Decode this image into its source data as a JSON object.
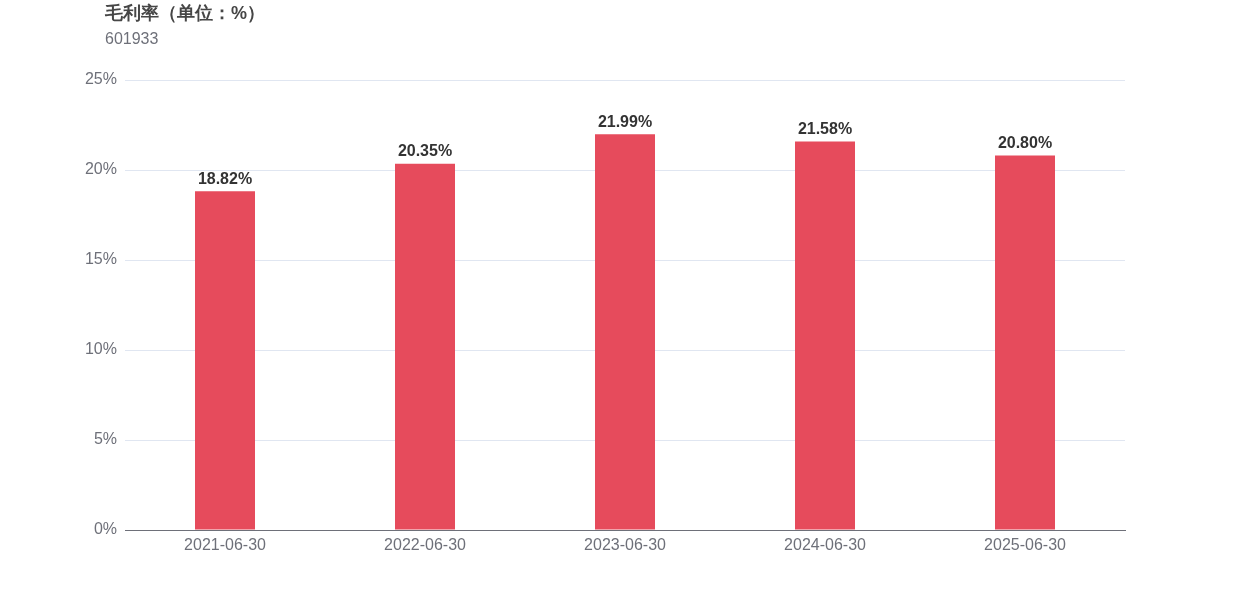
{
  "chart_data": {
    "type": "bar",
    "title": "毛利率（单位：%）",
    "subtitle": "601933",
    "categories": [
      "2021-06-30",
      "2022-06-30",
      "2023-06-30",
      "2024-06-30",
      "2025-06-30"
    ],
    "values": [
      18.82,
      20.35,
      21.99,
      21.58,
      20.8
    ],
    "value_labels": [
      "18.82%",
      "20.35%",
      "21.99%",
      "21.58%",
      "20.80%"
    ],
    "color": "#e64b5c",
    "ylim": [
      0,
      25
    ],
    "yticks": [
      {
        "value": 0,
        "label": "0%"
      },
      {
        "value": 5,
        "label": "5%"
      },
      {
        "value": 10,
        "label": "10%"
      },
      {
        "value": 15,
        "label": "15%"
      },
      {
        "value": 20,
        "label": "20%"
      },
      {
        "value": 25,
        "label": "25%"
      }
    ],
    "grid": "y",
    "legend": false
  }
}
